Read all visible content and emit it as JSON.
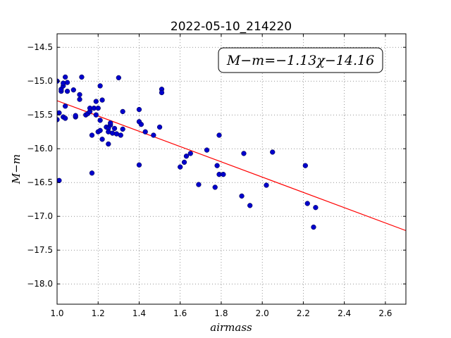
{
  "chart_data": {
    "type": "scatter",
    "title": "2022-05-10_214220",
    "xlabel": "airmass",
    "ylabel": "M−m",
    "xlim": [
      1.0,
      2.7
    ],
    "ylim": [
      -18.3,
      -14.3
    ],
    "xticks": [
      1.0,
      1.2,
      1.4,
      1.6,
      1.8,
      2.0,
      2.2,
      2.4,
      2.6
    ],
    "xtick_labels": [
      "1.0",
      "1.2",
      "1.4",
      "1.6",
      "1.8",
      "2.0",
      "2.2",
      "2.4",
      "2.6"
    ],
    "yticks": [
      -14.5,
      -15.0,
      -15.5,
      -16.0,
      -16.5,
      -17.0,
      -17.5,
      -18.0
    ],
    "ytick_labels": [
      "−14.5",
      "−15.0",
      "−15.5",
      "−16.0",
      "−16.5",
      "−17.0",
      "−17.5",
      "−18.0"
    ],
    "grid": true,
    "annotation": "M−m=−1.13χ−14.16",
    "fit": {
      "slope": -1.13,
      "intercept": -14.16,
      "color": "#ff0000"
    },
    "point_color": "#0000cc",
    "points": [
      [
        1.0,
        -15.0
      ],
      [
        1.0,
        -15.57
      ],
      [
        1.01,
        -15.47
      ],
      [
        1.01,
        -16.47
      ],
      [
        1.02,
        -15.15
      ],
      [
        1.02,
        -15.12
      ],
      [
        1.03,
        -15.07
      ],
      [
        1.03,
        -15.03
      ],
      [
        1.03,
        -15.53
      ],
      [
        1.04,
        -15.55
      ],
      [
        1.04,
        -15.37
      ],
      [
        1.04,
        -14.94
      ],
      [
        1.05,
        -15.02
      ],
      [
        1.05,
        -15.15
      ],
      [
        1.08,
        -15.13
      ],
      [
        1.09,
        -15.53
      ],
      [
        1.09,
        -15.51
      ],
      [
        1.11,
        -15.2
      ],
      [
        1.11,
        -15.27
      ],
      [
        1.12,
        -14.94
      ],
      [
        1.14,
        -15.5
      ],
      [
        1.15,
        -15.48
      ],
      [
        1.16,
        -15.45
      ],
      [
        1.16,
        -15.4
      ],
      [
        1.17,
        -15.8
      ],
      [
        1.17,
        -16.36
      ],
      [
        1.18,
        -15.4
      ],
      [
        1.19,
        -15.5
      ],
      [
        1.19,
        -15.3
      ],
      [
        1.2,
        -15.4
      ],
      [
        1.2,
        -15.75
      ],
      [
        1.21,
        -15.58
      ],
      [
        1.21,
        -15.73
      ],
      [
        1.21,
        -15.07
      ],
      [
        1.22,
        -15.86
      ],
      [
        1.22,
        -15.28
      ],
      [
        1.24,
        -15.68
      ],
      [
        1.25,
        -15.7
      ],
      [
        1.25,
        -15.75
      ],
      [
        1.25,
        -15.93
      ],
      [
        1.26,
        -15.65
      ],
      [
        1.26,
        -15.62
      ],
      [
        1.27,
        -15.77
      ],
      [
        1.28,
        -15.7
      ],
      [
        1.29,
        -15.78
      ],
      [
        1.3,
        -14.95
      ],
      [
        1.31,
        -15.8
      ],
      [
        1.32,
        -15.71
      ],
      [
        1.32,
        -15.45
      ],
      [
        1.4,
        -15.42
      ],
      [
        1.4,
        -15.6
      ],
      [
        1.4,
        -16.24
      ],
      [
        1.41,
        -15.64
      ],
      [
        1.43,
        -15.75
      ],
      [
        1.47,
        -15.8
      ],
      [
        1.5,
        -15.68
      ],
      [
        1.51,
        -15.12
      ],
      [
        1.51,
        -15.17
      ],
      [
        1.6,
        -16.27
      ],
      [
        1.62,
        -16.2
      ],
      [
        1.63,
        -16.11
      ],
      [
        1.65,
        -16.07
      ],
      [
        1.69,
        -16.53
      ],
      [
        1.73,
        -16.02
      ],
      [
        1.77,
        -16.57
      ],
      [
        1.78,
        -16.25
      ],
      [
        1.79,
        -16.38
      ],
      [
        1.79,
        -15.8
      ],
      [
        1.81,
        -16.38
      ],
      [
        1.9,
        -16.7
      ],
      [
        1.91,
        -16.07
      ],
      [
        1.94,
        -16.84
      ],
      [
        2.02,
        -16.54
      ],
      [
        2.05,
        -16.05
      ],
      [
        2.21,
        -16.25
      ],
      [
        2.22,
        -16.81
      ],
      [
        2.25,
        -17.16
      ],
      [
        2.26,
        -16.87
      ]
    ]
  }
}
